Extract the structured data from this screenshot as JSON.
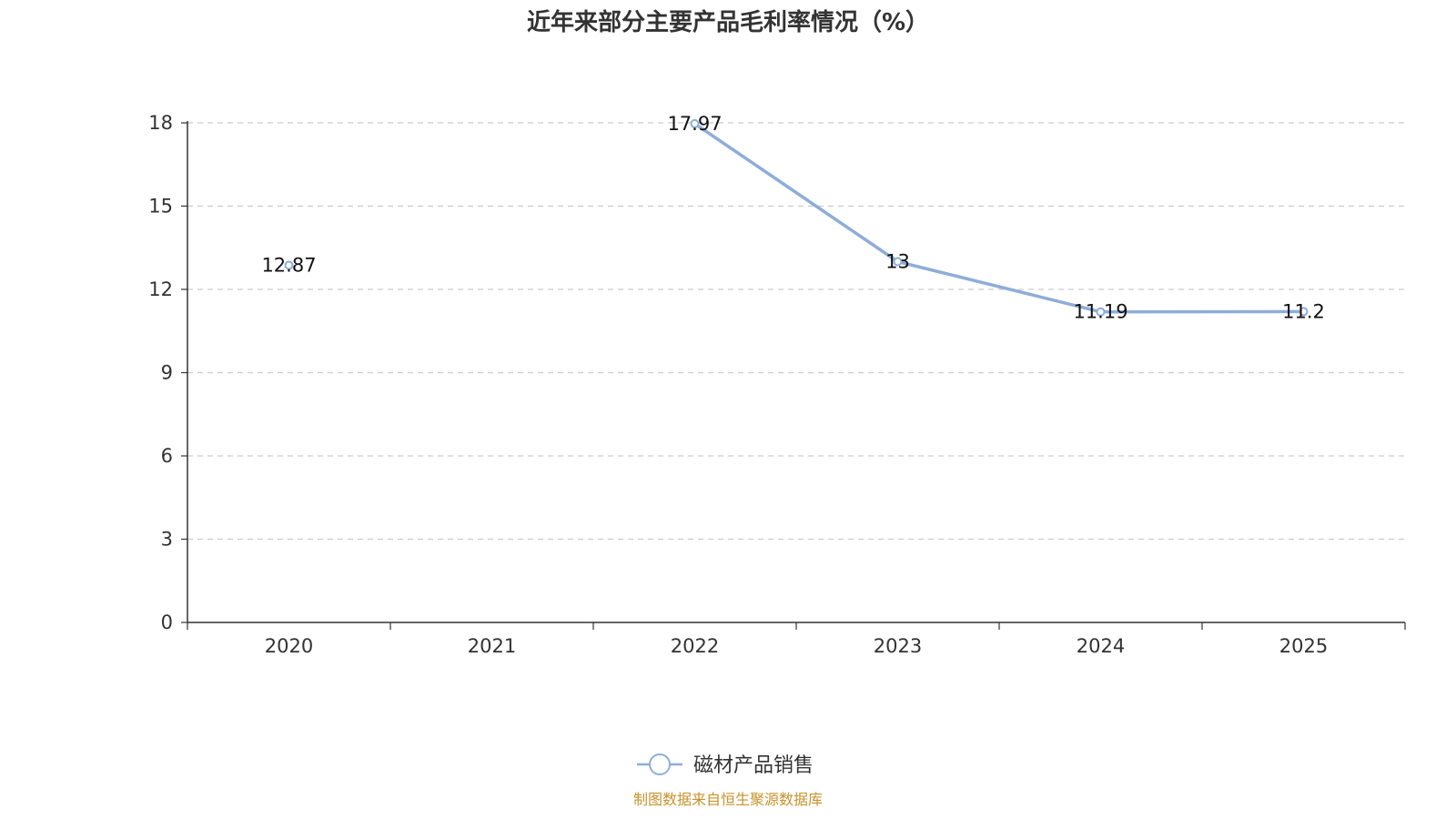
{
  "colors": {
    "series": "#8eadd8",
    "axis": "#333333",
    "grid": "#cccccc",
    "source": "#c8922a"
  },
  "chart_data": {
    "type": "line",
    "title": "近年来部分主要产品毛利率情况（%）",
    "categories": [
      "2020",
      "2021",
      "2022",
      "2023",
      "2024",
      "2025"
    ],
    "series": [
      {
        "name": "磁材产品销售",
        "values": [
          12.87,
          null,
          17.97,
          13,
          11.19,
          11.2
        ],
        "labels": [
          "12.87",
          "",
          "17.97",
          "13",
          "11.19",
          "11.2"
        ]
      }
    ],
    "ylim": [
      0,
      18
    ],
    "yticks": [
      0,
      3,
      6,
      9,
      12,
      15,
      18
    ],
    "xlabel": "",
    "ylabel": "",
    "grid": true,
    "legend": "bottom-center"
  },
  "footer": {
    "source": "制图数据来自恒生聚源数据库"
  }
}
